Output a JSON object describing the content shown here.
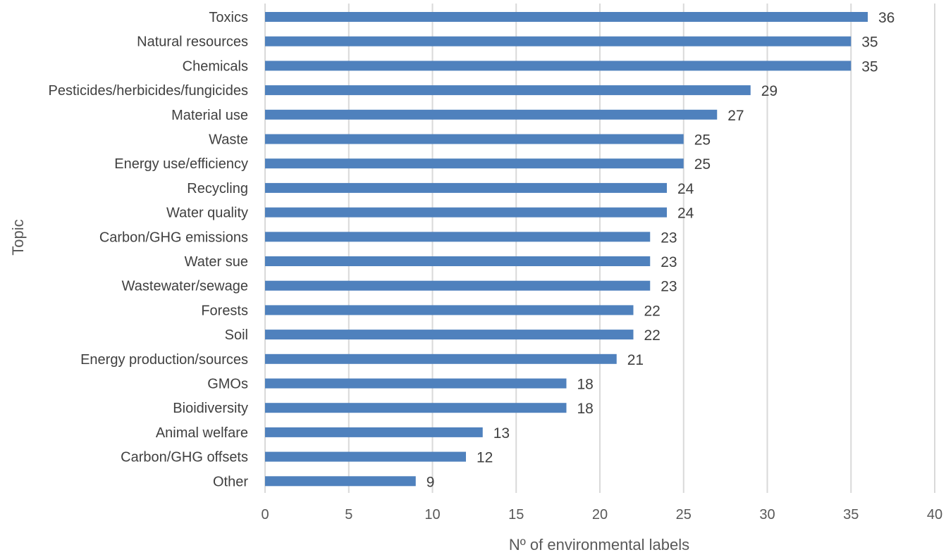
{
  "chart_data": {
    "type": "bar",
    "orientation": "horizontal",
    "title": "",
    "xlabel": "Nº of environmental labels",
    "ylabel": "Topic",
    "xlim": [
      0,
      40
    ],
    "x_ticks": [
      0,
      5,
      10,
      15,
      20,
      25,
      30,
      35,
      40
    ],
    "grid": "vertical",
    "legend": "none",
    "bar_color": "#4f81bd",
    "data_labels": true,
    "categories": [
      "Toxics",
      "Natural resources",
      "Chemicals",
      "Pesticides/herbicides/fungicides",
      "Material use",
      "Waste",
      "Energy use/efficiency",
      "Recycling",
      "Water quality",
      "Carbon/GHG emissions",
      "Water sue",
      "Wastewater/sewage",
      "Forests",
      "Soil",
      "Energy production/sources",
      "GMOs",
      "Bioidiversity",
      "Animal welfare",
      "Carbon/GHG offsets",
      "Other"
    ],
    "values": [
      36,
      35,
      35,
      29,
      27,
      25,
      25,
      24,
      24,
      23,
      23,
      23,
      22,
      22,
      21,
      18,
      18,
      13,
      12,
      9
    ]
  }
}
